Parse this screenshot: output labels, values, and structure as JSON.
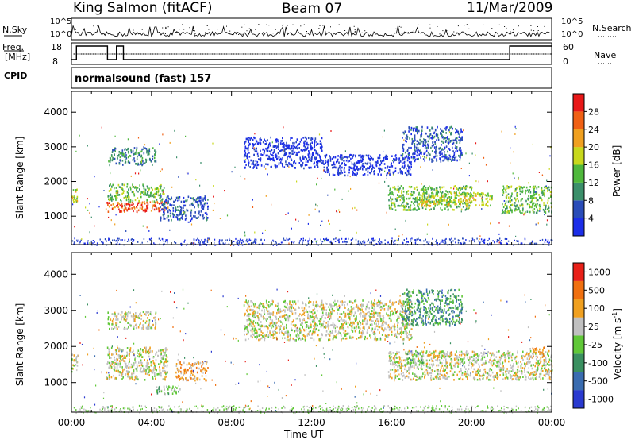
{
  "header": {
    "radar": "King Salmon (fitACF)",
    "beam": "Beam 07",
    "date": "11/Mar/2009"
  },
  "aux_panels": {
    "nsky_label": "N.Sky",
    "nsky_ticks": [
      "10^5",
      "10^0"
    ],
    "nsearch_label": "N.Search",
    "nsearch_ticks": [
      "10^5",
      "10^0"
    ],
    "freq_label_line1": "Freq.",
    "freq_label_line2": "[MHz]",
    "freq_ticks": [
      "18",
      "8"
    ],
    "nave_label": "Nave",
    "nave_ticks": [
      "60",
      "0"
    ],
    "cpid_label": "CPID",
    "cpid_value": "normalsound (fast) 157"
  },
  "chart_data": [
    {
      "type": "heatmap",
      "panel": "power",
      "ylabel": "Slant Range [km]",
      "xlabel": "Time UT",
      "x_ticks": [
        "00:00",
        "04:00",
        "08:00",
        "12:00",
        "16:00",
        "20:00",
        "00:00"
      ],
      "y_ticks": [
        1000,
        2000,
        3000,
        4000
      ],
      "xlim_hours": [
        0,
        24
      ],
      "ylim_km": [
        180,
        4600
      ],
      "colorbar_label": "Power [dB]",
      "colorbar_ticks": [
        "28",
        "24",
        "20",
        "16",
        "12",
        "8",
        "4"
      ],
      "colors": [
        "#1c2ee8",
        "#2a4cb8",
        "#3b8f6a",
        "#4fb83c",
        "#c8d81c",
        "#f0a020",
        "#f06014",
        "#e81818"
      ],
      "regions": [
        {
          "t0": 0.0,
          "t1": 0.3,
          "r0": 1400,
          "r1": 1800,
          "level": 4
        },
        {
          "t0": 1.7,
          "t1": 4.8,
          "r0": 1150,
          "r1": 1450,
          "level": 6
        },
        {
          "t0": 1.8,
          "t1": 4.6,
          "r0": 1450,
          "r1": 1950,
          "level": 3
        },
        {
          "t0": 1.8,
          "t1": 4.2,
          "r0": 2500,
          "r1": 3000,
          "level": 2
        },
        {
          "t0": 4.4,
          "t1": 6.8,
          "r0": 900,
          "r1": 1600,
          "level": 1
        },
        {
          "t0": 8.6,
          "t1": 12.5,
          "r0": 2400,
          "r1": 3300,
          "level": 0
        },
        {
          "t0": 12.5,
          "t1": 17.0,
          "r0": 2200,
          "r1": 2800,
          "level": 0
        },
        {
          "t0": 15.8,
          "t1": 20.0,
          "r0": 1200,
          "r1": 1900,
          "level": 3
        },
        {
          "t0": 17.5,
          "t1": 21.0,
          "r0": 1300,
          "r1": 1700,
          "level": 4
        },
        {
          "t0": 21.5,
          "t1": 24.0,
          "r0": 1100,
          "r1": 1900,
          "level": 3
        },
        {
          "t0": 16.5,
          "t1": 19.5,
          "r0": 2600,
          "r1": 3600,
          "level": 1
        }
      ]
    },
    {
      "type": "heatmap",
      "panel": "velocity",
      "ylabel": "Slant Range [km]",
      "xlabel": "Time UT",
      "x_ticks": [
        "00:00",
        "04:00",
        "08:00",
        "12:00",
        "16:00",
        "20:00",
        "00:00"
      ],
      "y_ticks": [
        1000,
        2000,
        3000,
        4000
      ],
      "xlim_hours": [
        0,
        24
      ],
      "ylim_km": [
        180,
        4600
      ],
      "colorbar_label": "Velocity [m s^-1]",
      "colorbar_ticks": [
        "1000",
        "500",
        "100",
        "25",
        "-25",
        "-100",
        "-500",
        "-1000"
      ],
      "colors": [
        "#2a3ad0",
        "#3a6cb0",
        "#3a9060",
        "#60c838",
        "#c0c0c0",
        "#f0a020",
        "#f07010",
        "#e82018"
      ],
      "regions": [
        {
          "t0": 0.0,
          "t1": 0.3,
          "r0": 1400,
          "r1": 1800,
          "level": 4
        },
        {
          "t0": 1.7,
          "t1": 4.8,
          "r0": 1100,
          "r1": 2000,
          "level": 4
        },
        {
          "t0": 1.8,
          "t1": 4.2,
          "r0": 2500,
          "r1": 3000,
          "level": 4
        },
        {
          "t0": 5.2,
          "t1": 6.8,
          "r0": 1050,
          "r1": 1600,
          "level": 5
        },
        {
          "t0": 4.2,
          "t1": 5.5,
          "r0": 700,
          "r1": 950,
          "level": 3
        },
        {
          "t0": 8.6,
          "t1": 17.0,
          "r0": 2200,
          "r1": 3300,
          "level": 4
        },
        {
          "t0": 15.8,
          "t1": 24.0,
          "r0": 1100,
          "r1": 1900,
          "level": 4
        },
        {
          "t0": 16.5,
          "t1": 19.5,
          "r0": 2600,
          "r1": 3600,
          "level": 2
        },
        {
          "t0": 16.6,
          "t1": 17.6,
          "r0": 1500,
          "r1": 1900,
          "level": 3
        },
        {
          "t0": 22.8,
          "t1": 23.6,
          "r0": 1700,
          "r1": 2000,
          "level": 5
        }
      ]
    }
  ]
}
